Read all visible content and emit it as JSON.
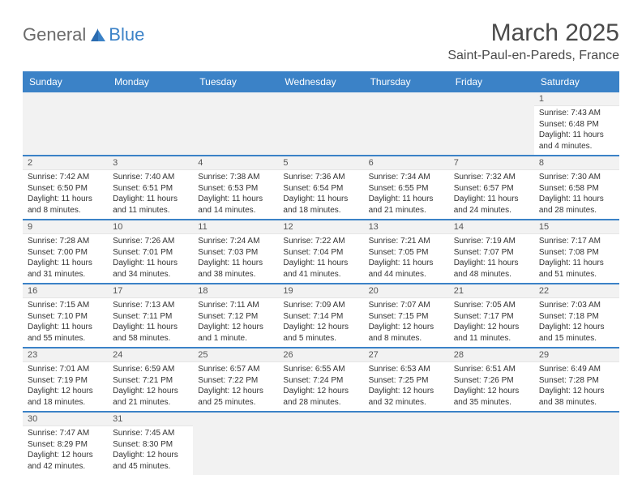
{
  "logo": {
    "text1": "General",
    "text2": "Blue"
  },
  "header": {
    "title": "March 2025",
    "location": "Saint-Paul-en-Pareds, France"
  },
  "colors": {
    "accent": "#3b82c7",
    "header_bg": "#3b82c7",
    "header_text": "#ffffff",
    "daynum_bg": "#f2f2f2",
    "text": "#333333"
  },
  "days_of_week": [
    "Sunday",
    "Monday",
    "Tuesday",
    "Wednesday",
    "Thursday",
    "Friday",
    "Saturday"
  ],
  "weeks": [
    [
      null,
      null,
      null,
      null,
      null,
      null,
      {
        "n": "1",
        "sunrise": "Sunrise: 7:43 AM",
        "sunset": "Sunset: 6:48 PM",
        "day1": "Daylight: 11 hours",
        "day2": "and 4 minutes."
      }
    ],
    [
      {
        "n": "2",
        "sunrise": "Sunrise: 7:42 AM",
        "sunset": "Sunset: 6:50 PM",
        "day1": "Daylight: 11 hours",
        "day2": "and 8 minutes."
      },
      {
        "n": "3",
        "sunrise": "Sunrise: 7:40 AM",
        "sunset": "Sunset: 6:51 PM",
        "day1": "Daylight: 11 hours",
        "day2": "and 11 minutes."
      },
      {
        "n": "4",
        "sunrise": "Sunrise: 7:38 AM",
        "sunset": "Sunset: 6:53 PM",
        "day1": "Daylight: 11 hours",
        "day2": "and 14 minutes."
      },
      {
        "n": "5",
        "sunrise": "Sunrise: 7:36 AM",
        "sunset": "Sunset: 6:54 PM",
        "day1": "Daylight: 11 hours",
        "day2": "and 18 minutes."
      },
      {
        "n": "6",
        "sunrise": "Sunrise: 7:34 AM",
        "sunset": "Sunset: 6:55 PM",
        "day1": "Daylight: 11 hours",
        "day2": "and 21 minutes."
      },
      {
        "n": "7",
        "sunrise": "Sunrise: 7:32 AM",
        "sunset": "Sunset: 6:57 PM",
        "day1": "Daylight: 11 hours",
        "day2": "and 24 minutes."
      },
      {
        "n": "8",
        "sunrise": "Sunrise: 7:30 AM",
        "sunset": "Sunset: 6:58 PM",
        "day1": "Daylight: 11 hours",
        "day2": "and 28 minutes."
      }
    ],
    [
      {
        "n": "9",
        "sunrise": "Sunrise: 7:28 AM",
        "sunset": "Sunset: 7:00 PM",
        "day1": "Daylight: 11 hours",
        "day2": "and 31 minutes."
      },
      {
        "n": "10",
        "sunrise": "Sunrise: 7:26 AM",
        "sunset": "Sunset: 7:01 PM",
        "day1": "Daylight: 11 hours",
        "day2": "and 34 minutes."
      },
      {
        "n": "11",
        "sunrise": "Sunrise: 7:24 AM",
        "sunset": "Sunset: 7:03 PM",
        "day1": "Daylight: 11 hours",
        "day2": "and 38 minutes."
      },
      {
        "n": "12",
        "sunrise": "Sunrise: 7:22 AM",
        "sunset": "Sunset: 7:04 PM",
        "day1": "Daylight: 11 hours",
        "day2": "and 41 minutes."
      },
      {
        "n": "13",
        "sunrise": "Sunrise: 7:21 AM",
        "sunset": "Sunset: 7:05 PM",
        "day1": "Daylight: 11 hours",
        "day2": "and 44 minutes."
      },
      {
        "n": "14",
        "sunrise": "Sunrise: 7:19 AM",
        "sunset": "Sunset: 7:07 PM",
        "day1": "Daylight: 11 hours",
        "day2": "and 48 minutes."
      },
      {
        "n": "15",
        "sunrise": "Sunrise: 7:17 AM",
        "sunset": "Sunset: 7:08 PM",
        "day1": "Daylight: 11 hours",
        "day2": "and 51 minutes."
      }
    ],
    [
      {
        "n": "16",
        "sunrise": "Sunrise: 7:15 AM",
        "sunset": "Sunset: 7:10 PM",
        "day1": "Daylight: 11 hours",
        "day2": "and 55 minutes."
      },
      {
        "n": "17",
        "sunrise": "Sunrise: 7:13 AM",
        "sunset": "Sunset: 7:11 PM",
        "day1": "Daylight: 11 hours",
        "day2": "and 58 minutes."
      },
      {
        "n": "18",
        "sunrise": "Sunrise: 7:11 AM",
        "sunset": "Sunset: 7:12 PM",
        "day1": "Daylight: 12 hours",
        "day2": "and 1 minute."
      },
      {
        "n": "19",
        "sunrise": "Sunrise: 7:09 AM",
        "sunset": "Sunset: 7:14 PM",
        "day1": "Daylight: 12 hours",
        "day2": "and 5 minutes."
      },
      {
        "n": "20",
        "sunrise": "Sunrise: 7:07 AM",
        "sunset": "Sunset: 7:15 PM",
        "day1": "Daylight: 12 hours",
        "day2": "and 8 minutes."
      },
      {
        "n": "21",
        "sunrise": "Sunrise: 7:05 AM",
        "sunset": "Sunset: 7:17 PM",
        "day1": "Daylight: 12 hours",
        "day2": "and 11 minutes."
      },
      {
        "n": "22",
        "sunrise": "Sunrise: 7:03 AM",
        "sunset": "Sunset: 7:18 PM",
        "day1": "Daylight: 12 hours",
        "day2": "and 15 minutes."
      }
    ],
    [
      {
        "n": "23",
        "sunrise": "Sunrise: 7:01 AM",
        "sunset": "Sunset: 7:19 PM",
        "day1": "Daylight: 12 hours",
        "day2": "and 18 minutes."
      },
      {
        "n": "24",
        "sunrise": "Sunrise: 6:59 AM",
        "sunset": "Sunset: 7:21 PM",
        "day1": "Daylight: 12 hours",
        "day2": "and 21 minutes."
      },
      {
        "n": "25",
        "sunrise": "Sunrise: 6:57 AM",
        "sunset": "Sunset: 7:22 PM",
        "day1": "Daylight: 12 hours",
        "day2": "and 25 minutes."
      },
      {
        "n": "26",
        "sunrise": "Sunrise: 6:55 AM",
        "sunset": "Sunset: 7:24 PM",
        "day1": "Daylight: 12 hours",
        "day2": "and 28 minutes."
      },
      {
        "n": "27",
        "sunrise": "Sunrise: 6:53 AM",
        "sunset": "Sunset: 7:25 PM",
        "day1": "Daylight: 12 hours",
        "day2": "and 32 minutes."
      },
      {
        "n": "28",
        "sunrise": "Sunrise: 6:51 AM",
        "sunset": "Sunset: 7:26 PM",
        "day1": "Daylight: 12 hours",
        "day2": "and 35 minutes."
      },
      {
        "n": "29",
        "sunrise": "Sunrise: 6:49 AM",
        "sunset": "Sunset: 7:28 PM",
        "day1": "Daylight: 12 hours",
        "day2": "and 38 minutes."
      }
    ],
    [
      {
        "n": "30",
        "sunrise": "Sunrise: 7:47 AM",
        "sunset": "Sunset: 8:29 PM",
        "day1": "Daylight: 12 hours",
        "day2": "and 42 minutes."
      },
      {
        "n": "31",
        "sunrise": "Sunrise: 7:45 AM",
        "sunset": "Sunset: 8:30 PM",
        "day1": "Daylight: 12 hours",
        "day2": "and 45 minutes."
      },
      null,
      null,
      null,
      null,
      null
    ]
  ]
}
